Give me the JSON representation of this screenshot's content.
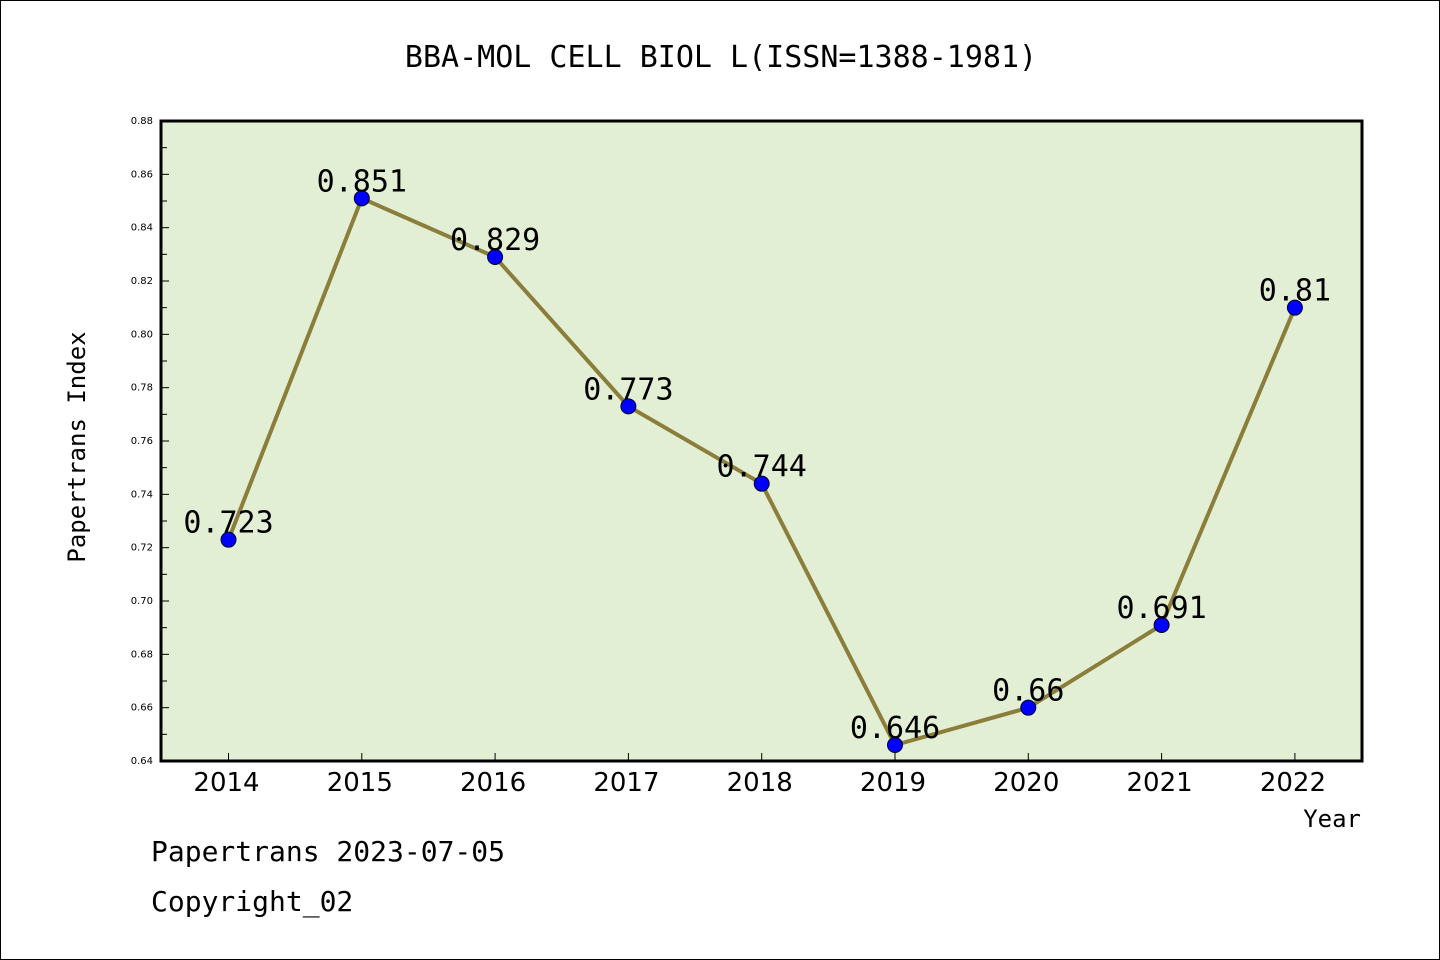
{
  "chart_data": {
    "type": "line",
    "title": "BBA-MOL CELL BIOL L(ISSN=1388-1981)",
    "xlabel": "Year",
    "ylabel": "Papertrans Index",
    "categories": [
      "2014",
      "2015",
      "2016",
      "2017",
      "2018",
      "2019",
      "2020",
      "2021",
      "2022"
    ],
    "values": [
      0.723,
      0.851,
      0.829,
      0.773,
      0.744,
      0.646,
      0.66,
      0.691,
      0.81
    ],
    "data_labels": [
      "0.723",
      "0.851",
      "0.829",
      "0.773",
      "0.744",
      "0.646",
      "0.66",
      "0.691",
      "0.81"
    ],
    "ylim": [
      0.64,
      0.88
    ],
    "yticks": [
      "0.64",
      "0.66",
      "0.68",
      "0.70",
      "0.72",
      "0.74",
      "0.76",
      "0.78",
      "0.80",
      "0.82",
      "0.84",
      "0.86",
      "0.88"
    ],
    "grid": false,
    "colors": {
      "plot_background": "#e2efd5",
      "line": "#8b7d3a",
      "marker": "#0000ff"
    }
  },
  "footer": {
    "line1": "Papertrans 2023-07-05",
    "line2": "Copyright_02"
  }
}
